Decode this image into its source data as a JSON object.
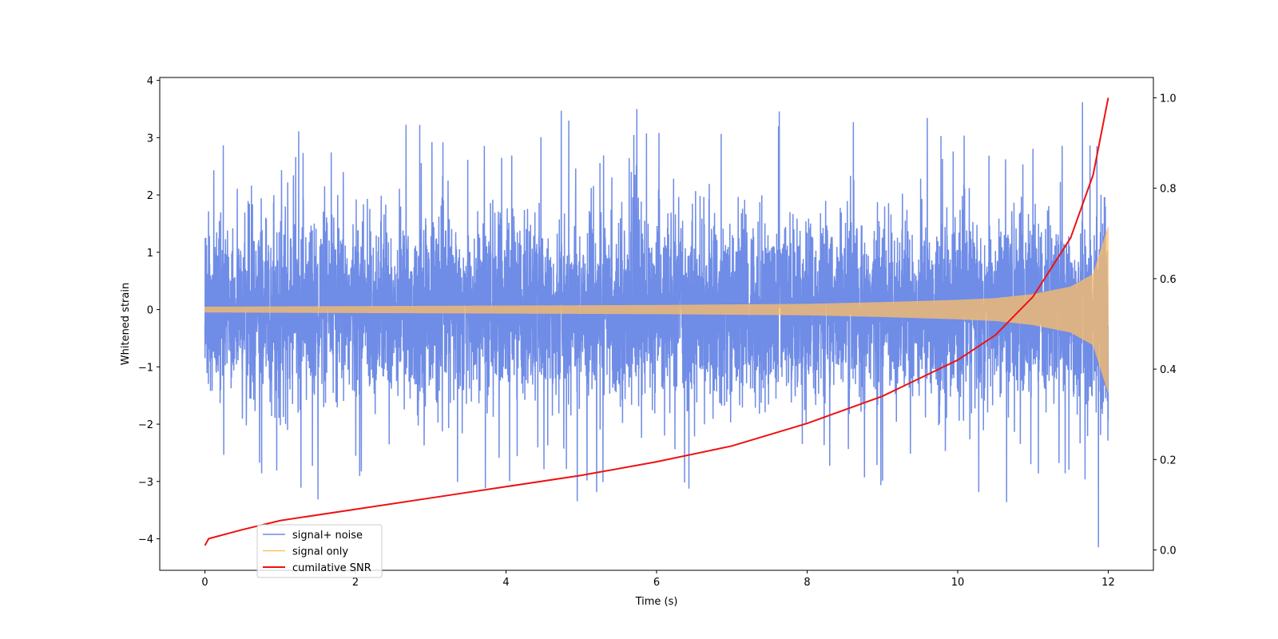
{
  "chart_data": {
    "type": "line",
    "title": "",
    "xlabel": "Time (s)",
    "ylabel": "Whitened strain",
    "xlim": [
      -0.6,
      12.6
    ],
    "ylim": [
      -4.55,
      4.05
    ],
    "y2lim": [
      -0.045,
      1.045
    ],
    "x_ticks": [
      0,
      2,
      4,
      6,
      8,
      10,
      12
    ],
    "y_ticks": [
      -4,
      -3,
      -2,
      -1,
      0,
      1,
      2,
      3,
      4
    ],
    "y2_ticks": [
      0.0,
      0.2,
      0.4,
      0.6,
      0.8,
      1.0
    ],
    "x_tick_labels": [
      "0",
      "2",
      "4",
      "6",
      "8",
      "10",
      "12"
    ],
    "y_tick_labels": [
      "−4",
      "−3",
      "−2",
      "−1",
      "0",
      "1",
      "2",
      "3",
      "4"
    ],
    "y2_tick_labels": [
      "0.0",
      "0.2",
      "0.4",
      "0.6",
      "0.8",
      "1.0"
    ],
    "grid": false,
    "legend_position": "bottom-left",
    "series": [
      {
        "name": "signal+ noise",
        "color": "#6f8ce6",
        "axis": "left",
        "kind": "noisy-band",
        "x": [
          0,
          2,
          4,
          6,
          8,
          10,
          11,
          11.5,
          11.8,
          12
        ],
        "upper_envelope": [
          1.6,
          1.6,
          1.6,
          1.6,
          1.6,
          1.65,
          1.7,
          1.8,
          2.0,
          1.5
        ],
        "lower_envelope": [
          -1.6,
          -1.6,
          -1.6,
          -1.6,
          -1.6,
          -1.65,
          -1.7,
          -1.8,
          -2.0,
          -1.8
        ],
        "max_peak": 3.62,
        "min_peak": -4.15
      },
      {
        "name": "signal only",
        "color": "#ffbf66",
        "axis": "left",
        "kind": "chirp-envelope",
        "x": [
          0,
          2,
          4,
          6,
          8,
          9,
          10,
          10.5,
          11,
          11.5,
          11.8,
          12
        ],
        "amplitude": [
          0.05,
          0.06,
          0.07,
          0.08,
          0.1,
          0.13,
          0.17,
          0.2,
          0.27,
          0.4,
          0.62,
          1.45
        ]
      },
      {
        "name": "cumilative SNR",
        "color": "#ee1111",
        "axis": "right",
        "kind": "line",
        "x": [
          0,
          0.05,
          0.5,
          1,
          2,
          3,
          4,
          5,
          6,
          7,
          8,
          9,
          10,
          10.5,
          11,
          11.5,
          11.8,
          12
        ],
        "values": [
          0.01,
          0.025,
          0.045,
          0.065,
          0.09,
          0.115,
          0.14,
          0.165,
          0.195,
          0.23,
          0.28,
          0.34,
          0.42,
          0.475,
          0.56,
          0.69,
          0.83,
          1.0
        ]
      }
    ]
  }
}
